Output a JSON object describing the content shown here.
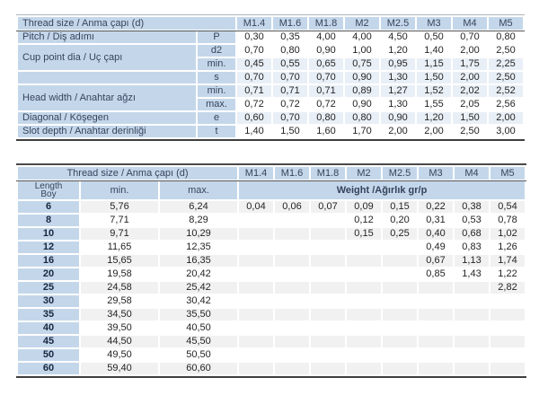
{
  "colors": {
    "cell_blue": "#c4d7ea",
    "shade_blue": "#e9eff6",
    "shade_gray": "#f1f1f1",
    "border_dark": "#3f3f3f",
    "border_light": "#aeb4ba",
    "text_values": "#242424",
    "text_headers": "#36435a"
  },
  "spec_table": {
    "corner_label": "Thread size / Anma çapı (d)",
    "sizes": [
      "M1.4",
      "M1.6",
      "M1.8",
      "M2",
      "M2.5",
      "M3",
      "M4",
      "M5"
    ],
    "rows": [
      {
        "label": "Pitch / Diş adımı",
        "rowspan": 1,
        "sub": "P",
        "shade": false,
        "values": [
          "0,30",
          "0,35",
          "4,00",
          "4,00",
          "4,50",
          "0,50",
          "0,70",
          "0,80"
        ]
      },
      {
        "label": "Cup point dia / Uç çapı",
        "rowspan": 2,
        "sub": "d2",
        "shade": false,
        "values": [
          "0,70",
          "0,80",
          "0,90",
          "1,00",
          "1,20",
          "1,40",
          "2,00",
          "2,50"
        ]
      },
      {
        "label": null,
        "sub": "min.",
        "shade": true,
        "values": [
          "0,45",
          "0,55",
          "0,65",
          "0,75",
          "0,95",
          "1,15",
          "1,75",
          "2,25"
        ]
      },
      {
        "label": "",
        "rowspan": 1,
        "sub": "s",
        "shade": true,
        "values": [
          "0,70",
          "0,70",
          "0,70",
          "0,90",
          "1,30",
          "1,50",
          "2,00",
          "2,50"
        ]
      },
      {
        "label": "Head width / Anahtar ağzı",
        "rowspan": 2,
        "sub": "min.",
        "shade": true,
        "values": [
          "0,71",
          "0,71",
          "0,71",
          "0,89",
          "1,27",
          "1,52",
          "2,02",
          "2,52"
        ]
      },
      {
        "label": null,
        "sub": "max.",
        "shade": false,
        "values": [
          "0,72",
          "0,72",
          "0,72",
          "0,90",
          "1,30",
          "1,55",
          "2,05",
          "2,56"
        ]
      },
      {
        "label": "Diagonal / Köşegen",
        "rowspan": 1,
        "sub": "e",
        "shade": true,
        "values": [
          "0,60",
          "0,70",
          "0,80",
          "0,80",
          "0,90",
          "1,20",
          "1,50",
          "2,00"
        ]
      },
      {
        "label": "Slot depth / Anahtar derinliği",
        "rowspan": 1,
        "sub": "t",
        "shade": false,
        "values": [
          "1,40",
          "1,50",
          "1,60",
          "1,70",
          "2,00",
          "2,00",
          "2,50",
          "3,00"
        ]
      }
    ]
  },
  "length_table": {
    "header_label": "Thread size / Anma çapı (d)",
    "sizes": [
      "M1.4",
      "M1.6",
      "M1.8",
      "M2",
      "M2.5",
      "M3",
      "M4",
      "M5"
    ],
    "length_label": "Length",
    "length_label_tr": "Boy",
    "min_label": "min.",
    "max_label": "max.",
    "weight_label": "Weight /Ağırlık gr/p",
    "rows": [
      {
        "length": "6",
        "min": "5,76",
        "max": "6,24",
        "shade": true,
        "weights": [
          "0,04",
          "0,06",
          "0,07",
          "0,09",
          "0,15",
          "0,22",
          "0,38",
          "0,54"
        ]
      },
      {
        "length": "8",
        "min": "7,71",
        "max": "8,29",
        "shade": false,
        "weights": [
          "",
          "",
          "",
          "0,12",
          "0,20",
          "0,31",
          "0,53",
          "0,78"
        ]
      },
      {
        "length": "10",
        "min": "9,71",
        "max": "10,29",
        "shade": true,
        "weights": [
          "",
          "",
          "",
          "0,15",
          "0,25",
          "0,40",
          "0,68",
          "1,02"
        ]
      },
      {
        "length": "12",
        "min": "11,65",
        "max": "12,35",
        "shade": false,
        "weights": [
          "",
          "",
          "",
          "",
          "",
          "0,49",
          "0,83",
          "1,26"
        ]
      },
      {
        "length": "16",
        "min": "15,65",
        "max": "16,35",
        "shade": true,
        "weights": [
          "",
          "",
          "",
          "",
          "",
          "0,67",
          "1,13",
          "1,74"
        ]
      },
      {
        "length": "20",
        "min": "19,58",
        "max": "20,42",
        "shade": false,
        "weights": [
          "",
          "",
          "",
          "",
          "",
          "0,85",
          "1,43",
          "1,22"
        ]
      },
      {
        "length": "25",
        "min": "24,58",
        "max": "25,42",
        "shade": true,
        "weights": [
          "",
          "",
          "",
          "",
          "",
          "",
          "",
          "2,82"
        ]
      },
      {
        "length": "30",
        "min": "29,58",
        "max": "30,42",
        "shade": false,
        "weights": [
          "",
          "",
          "",
          "",
          "",
          "",
          "",
          ""
        ]
      },
      {
        "length": "35",
        "min": "34,50",
        "max": "35,50",
        "shade": true,
        "weights": [
          "",
          "",
          "",
          "",
          "",
          "",
          "",
          ""
        ]
      },
      {
        "length": "40",
        "min": "39,50",
        "max": "40,50",
        "shade": false,
        "weights": [
          "",
          "",
          "",
          "",
          "",
          "",
          "",
          ""
        ]
      },
      {
        "length": "45",
        "min": "44,50",
        "max": "45,50",
        "shade": true,
        "weights": [
          "",
          "",
          "",
          "",
          "",
          "",
          "",
          ""
        ]
      },
      {
        "length": "50",
        "min": "49,50",
        "max": "50,50",
        "shade": false,
        "weights": [
          "",
          "",
          "",
          "",
          "",
          "",
          "",
          ""
        ]
      },
      {
        "length": "60",
        "min": "59,40",
        "max": "60,60",
        "shade": true,
        "weights": [
          "",
          "",
          "",
          "",
          "",
          "",
          "",
          ""
        ]
      }
    ]
  }
}
